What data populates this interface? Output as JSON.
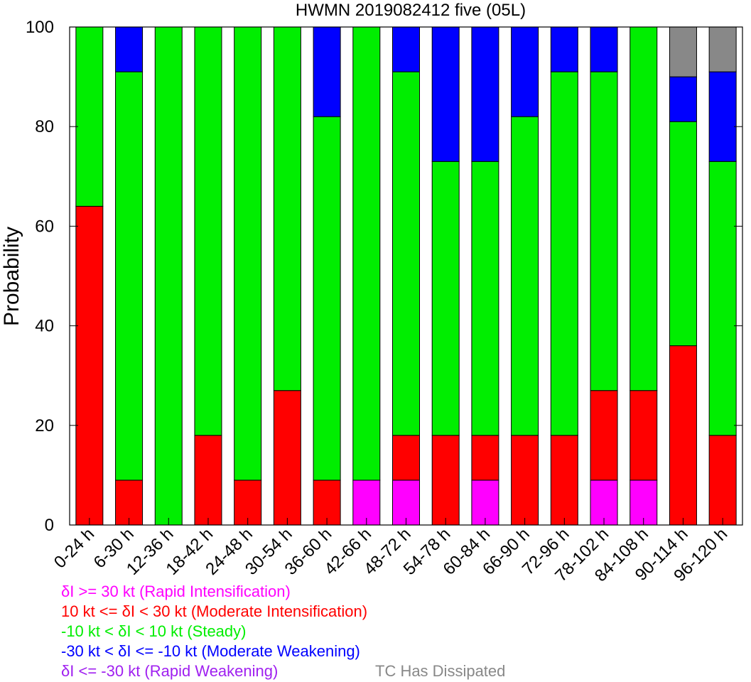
{
  "chart_data": {
    "type": "bar",
    "stacked": true,
    "title": "HWMN 2019082412 five (05L)",
    "ylabel": "Probability",
    "ylim": [
      0,
      100
    ],
    "yticks": [
      0,
      20,
      40,
      60,
      80,
      100
    ],
    "categories": [
      "0-24 h",
      "6-30 h",
      "12-36 h",
      "18-42 h",
      "24-48 h",
      "30-54 h",
      "36-60 h",
      "42-66 h",
      "48-72 h",
      "54-78 h",
      "60-84 h",
      "66-90 h",
      "72-96 h",
      "78-102 h",
      "84-108 h",
      "90-114 h",
      "96-120 h"
    ],
    "series": [
      {
        "name": "δI >= 30 kt (Rapid Intensification)",
        "color": "#ff00ff",
        "values": [
          0,
          0,
          0,
          0,
          0,
          0,
          0,
          9,
          9,
          0,
          9,
          0,
          0,
          9,
          9,
          0,
          0
        ]
      },
      {
        "name": "10 kt <= δI < 30 kt (Moderate Intensification)",
        "color": "#ff0000",
        "values": [
          64,
          9,
          0,
          18,
          9,
          27,
          9,
          0,
          9,
          18,
          9,
          18,
          18,
          18,
          18,
          36,
          18
        ]
      },
      {
        "name": "-10 kt < δI < 10 kt (Steady)",
        "color": "#00ee00",
        "values": [
          36,
          82,
          100,
          82,
          91,
          73,
          73,
          91,
          73,
          55,
          55,
          64,
          73,
          64,
          73,
          45,
          55
        ]
      },
      {
        "name": "-30 kt < δI <= -10 kt (Moderate Weakening)",
        "color": "#0000ff",
        "values": [
          0,
          9,
          0,
          0,
          0,
          0,
          18,
          0,
          9,
          27,
          27,
          18,
          9,
          9,
          0,
          9,
          18
        ]
      },
      {
        "name": "δI <= -30 kt (Rapid Weakening)",
        "color": "#a020f0",
        "values": [
          0,
          0,
          0,
          0,
          0,
          0,
          0,
          0,
          0,
          0,
          0,
          0,
          0,
          0,
          0,
          0,
          0
        ]
      },
      {
        "name": "TC Has Dissipated",
        "color": "#888888",
        "values": [
          0,
          0,
          0,
          0,
          0,
          0,
          0,
          0,
          0,
          0,
          0,
          0,
          0,
          0,
          0,
          10,
          9
        ]
      }
    ]
  },
  "legend": [
    {
      "text": "δI >= 30 kt (Rapid Intensification)",
      "color": "#ff00ff"
    },
    {
      "text": "10 kt <= δI < 30 kt (Moderate Intensification)",
      "color": "#ff0000"
    },
    {
      "text": "-10 kt < δI < 10 kt (Steady)",
      "color": "#00ee00"
    },
    {
      "text": "-30 kt < δI <= -10 kt (Moderate Weakening)",
      "color": "#0000ff"
    },
    {
      "text": "δI <= -30 kt (Rapid Weakening)",
      "color": "#a020f0"
    },
    {
      "text": "TC Has Dissipated",
      "color": "#888888"
    }
  ]
}
